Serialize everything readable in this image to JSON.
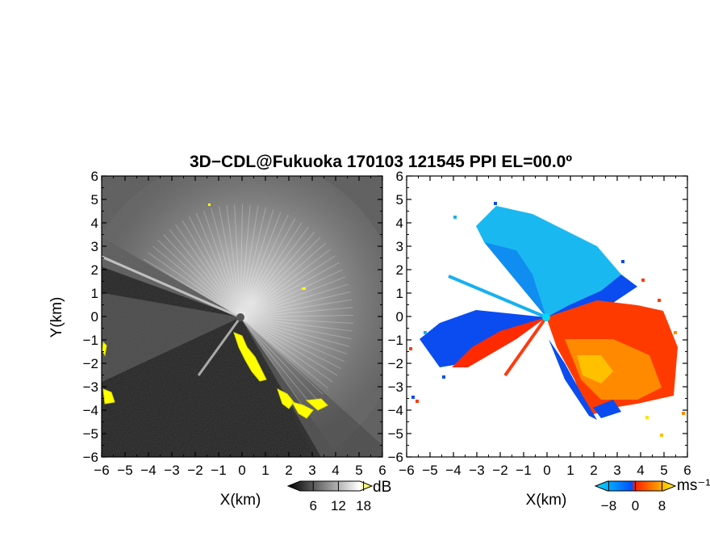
{
  "title": "3D−CDL@Fukuoka 170103 121545 PPI EL=00.0º",
  "chart_data": [
    {
      "type": "heatmap",
      "panel": "reflectivity",
      "xlabel": "X(km)",
      "ylabel": "Y(km)",
      "xlim": [
        -6,
        6
      ],
      "ylim": [
        -6,
        6
      ],
      "xticks": [
        "−6",
        "−5",
        "−4",
        "−3",
        "−2",
        "−1",
        "0",
        "1",
        "2",
        "3",
        "4",
        "5",
        "6"
      ],
      "yticks": [
        "6",
        "5",
        "4",
        "3",
        "2",
        "1",
        "0",
        "−1",
        "−2",
        "−3",
        "−4",
        "−5",
        "−6"
      ],
      "colorbar": {
        "unit": "dB",
        "tick_labels": [
          "6",
          "12",
          "18"
        ],
        "tick_values": [
          6,
          12,
          18
        ],
        "range": [
          0,
          20
        ],
        "colors": [
          "#000000",
          "#ffffff",
          "#ffff00"
        ]
      },
      "background_color": "#2a2a2a",
      "highlight_color": "#ffff00",
      "grid": false
    },
    {
      "type": "heatmap",
      "panel": "doppler-velocity",
      "xlabel": "X(km)",
      "ylabel": "",
      "xlim": [
        -6,
        6
      ],
      "ylim": [
        -6,
        6
      ],
      "xticks": [
        "−6",
        "−5",
        "−4",
        "−3",
        "−2",
        "−1",
        "0",
        "1",
        "2",
        "3",
        "4",
        "5",
        "6"
      ],
      "yticks": [
        "6",
        "5",
        "4",
        "3",
        "2",
        "1",
        "0",
        "−1",
        "−2",
        "−3",
        "−4",
        "−5",
        "−6"
      ],
      "colorbar": {
        "unit": "ms⁻¹",
        "tick_labels": [
          "−8",
          "0",
          "8"
        ],
        "tick_values": [
          -8,
          0,
          8
        ],
        "range": [
          -12,
          12
        ],
        "colors": [
          "#00e0ff",
          "#0050ff",
          "#ff2000",
          "#ffa000",
          "#ffff00"
        ]
      },
      "background_color": "#ffffff",
      "grid": false
    }
  ]
}
